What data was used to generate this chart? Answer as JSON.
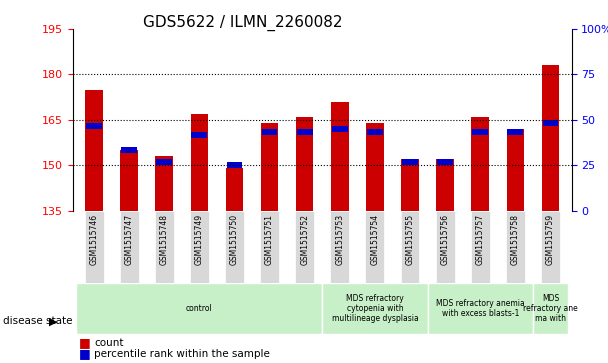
{
  "title": "GDS5622 / ILMN_2260082",
  "samples": [
    "GSM1515746",
    "GSM1515747",
    "GSM1515748",
    "GSM1515749",
    "GSM1515750",
    "GSM1515751",
    "GSM1515752",
    "GSM1515753",
    "GSM1515754",
    "GSM1515755",
    "GSM1515756",
    "GSM1515757",
    "GSM1515758",
    "GSM1515759"
  ],
  "counts": [
    175,
    155,
    153,
    167,
    149,
    164,
    166,
    171,
    164,
    152,
    152,
    166,
    162,
    183
  ],
  "percentile_values": [
    163,
    155,
    151,
    160,
    150,
    161,
    161,
    162,
    161,
    151,
    151,
    161,
    161,
    164
  ],
  "ylim_left": [
    135,
    195
  ],
  "ylim_right": [
    0,
    100
  ],
  "yticks_left": [
    135,
    150,
    165,
    180,
    195
  ],
  "yticks_right": [
    0,
    25,
    50,
    75,
    100
  ],
  "bar_color": "#cc0000",
  "percentile_color": "#0000cc",
  "grid_color": "#000000",
  "bg_color": "#ffffff",
  "disease_states": [
    {
      "label": "control",
      "start": 0,
      "end": 7,
      "color": "#d0f0d0"
    },
    {
      "label": "MDS refractory\ncytopenia with\nmultilineage dysplasia",
      "start": 7,
      "end": 10,
      "color": "#d0f0d0"
    },
    {
      "label": "MDS refractory anemia\nwith excess blasts-1",
      "start": 10,
      "end": 13,
      "color": "#d0f0d0"
    },
    {
      "label": "MDS\nrefractory ane\nma with",
      "start": 13,
      "end": 14,
      "color": "#d0f0d0"
    }
  ],
  "legend_count_label": "count",
  "legend_percentile_label": "percentile rank within the sample",
  "disease_state_label": "disease state",
  "bar_width": 0.5,
  "base_value": 135
}
